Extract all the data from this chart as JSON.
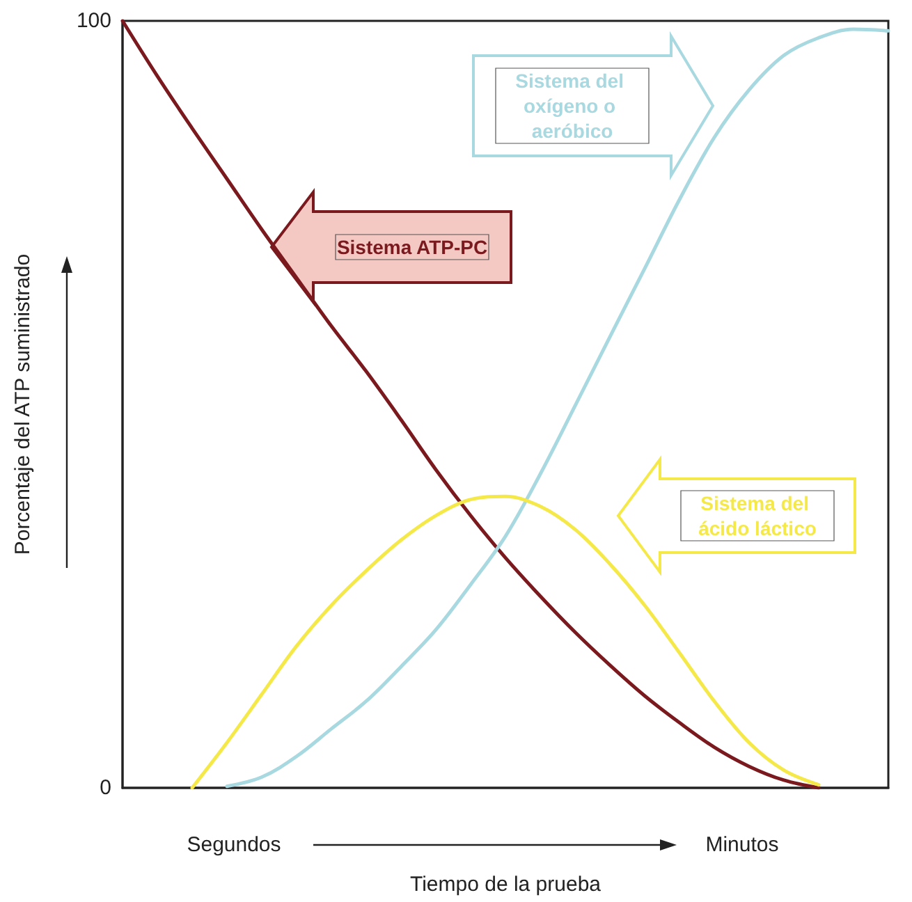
{
  "chart_data": {
    "type": "line",
    "xlabel": "Tiempo de la prueba",
    "ylabel": "Porcentaje del ATP suministrado",
    "categories": [
      null,
      null,
      null,
      null,
      null,
      null,
      null,
      null,
      null,
      null,
      null,
      null,
      null,
      null,
      null,
      null,
      null,
      null,
      null,
      null,
      null,
      null,
      null
    ],
    "series": [
      {
        "name": "Sistema ATP-PC",
        "color": "#7b1a1e",
        "values": [
          100,
          92.8,
          86,
          79.4,
          72.8,
          66.5,
          60.2,
          54.3,
          48,
          41.5,
          35.5,
          30,
          25,
          20.3,
          16,
          12,
          8.5,
          5.3,
          2.8,
          1,
          0,
          null,
          null
        ]
      },
      {
        "name": "Sistema del oxígeno o aeróbico",
        "color": "#a8d8e0",
        "values": [
          null,
          null,
          null,
          0.2,
          1.4,
          4.1,
          7.7,
          11.3,
          15.8,
          20.6,
          26.5,
          32.8,
          40.9,
          49.8,
          58.8,
          67.7,
          76.7,
          84.8,
          91,
          95.5,
          97.8,
          98.9,
          98.7
        ]
      },
      {
        "name": "Sistema del ácido láctico",
        "color": "#f5e94a",
        "values": [
          null,
          null,
          0,
          5.9,
          12.2,
          18.5,
          23.8,
          28.3,
          32.3,
          35.5,
          37.6,
          38,
          36.7,
          33.7,
          29.2,
          23.8,
          17.6,
          11.3,
          5.9,
          2.3,
          0.4,
          null,
          null
        ]
      }
    ],
    "ylim": [
      0,
      100
    ],
    "yticks": [
      0,
      100
    ],
    "tick_labels": "y",
    "grid": false,
    "legend": false,
    "marker": "none",
    "line_style": "solid",
    "annotations": [
      "Segundos",
      "Minutos"
    ]
  }
}
